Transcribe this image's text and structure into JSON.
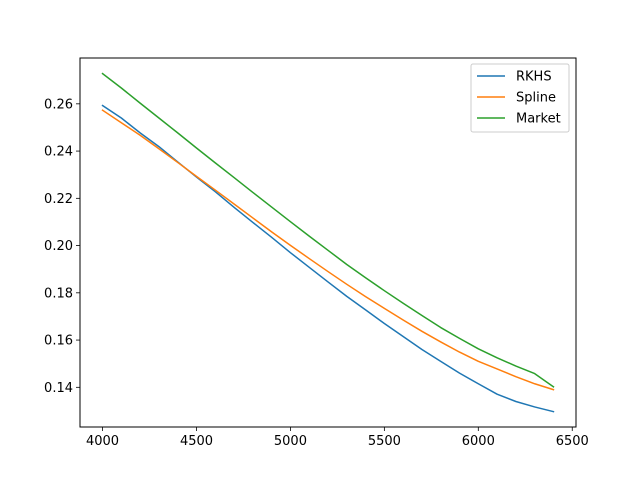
{
  "chart_data": {
    "type": "line",
    "title": "",
    "xlabel": "",
    "ylabel": "",
    "xlim": [
      3880,
      6520
    ],
    "ylim": [
      0.1232,
      0.2794
    ],
    "x_ticks": [
      4000,
      4500,
      5000,
      5500,
      6000,
      6500
    ],
    "x_tick_labels": [
      "4000",
      "4500",
      "5000",
      "5500",
      "6000",
      "6500"
    ],
    "y_ticks": [
      0.14,
      0.16,
      0.18,
      0.2,
      0.22,
      0.24,
      0.26
    ],
    "y_tick_labels": [
      "0.14",
      "0.16",
      "0.18",
      "0.20",
      "0.22",
      "0.24",
      "0.26"
    ],
    "grid": false,
    "legend_position": "upper right",
    "series": [
      {
        "name": "RKHS",
        "color": "#1f77b4",
        "x": [
          4000,
          4100,
          4200,
          4300,
          4400,
          4500,
          4600,
          4700,
          4800,
          4900,
          5000,
          5100,
          5200,
          5300,
          5400,
          5500,
          5600,
          5700,
          5800,
          5900,
          6000,
          6100,
          6200,
          6300,
          6400
        ],
        "y": [
          0.2593,
          0.254,
          0.2477,
          0.2419,
          0.2354,
          0.229,
          0.2228,
          0.2162,
          0.2098,
          0.2035,
          0.197,
          0.1908,
          0.1846,
          0.1785,
          0.1728,
          0.167,
          0.1615,
          0.156,
          0.151,
          0.146,
          0.1415,
          0.1371,
          0.134,
          0.1317,
          0.1297
        ]
      },
      {
        "name": "Spline",
        "color": "#ff7f0e",
        "x": [
          4000,
          4100,
          4200,
          4300,
          4400,
          4500,
          4600,
          4700,
          4800,
          4900,
          5000,
          5100,
          5200,
          5300,
          5400,
          5500,
          5600,
          5700,
          5800,
          5900,
          6000,
          6100,
          6200,
          6300,
          6400
        ],
        "y": [
          0.2573,
          0.252,
          0.2467,
          0.241,
          0.2352,
          0.2293,
          0.2235,
          0.2176,
          0.2117,
          0.2058,
          0.2001,
          0.1945,
          0.189,
          0.1836,
          0.1784,
          0.1734,
          0.1685,
          0.1637,
          0.1592,
          0.1549,
          0.151,
          0.1478,
          0.1445,
          0.1415,
          0.139
        ]
      },
      {
        "name": "Market",
        "color": "#2ca02c",
        "x": [
          4000,
          4100,
          4200,
          4300,
          4400,
          4500,
          4600,
          4700,
          4800,
          4900,
          5000,
          5100,
          5200,
          5300,
          5400,
          5500,
          5600,
          5700,
          5800,
          5900,
          6000,
          6100,
          6200,
          6300,
          6400
        ],
        "y": [
          0.2728,
          0.2667,
          0.2603,
          0.254,
          0.2477,
          0.2413,
          0.235,
          0.2288,
          0.2225,
          0.2163,
          0.2101,
          0.204,
          0.198,
          0.192,
          0.1864,
          0.1809,
          0.1756,
          0.1704,
          0.1653,
          0.1607,
          0.1563,
          0.1525,
          0.149,
          0.1458,
          0.1402
        ]
      }
    ]
  }
}
